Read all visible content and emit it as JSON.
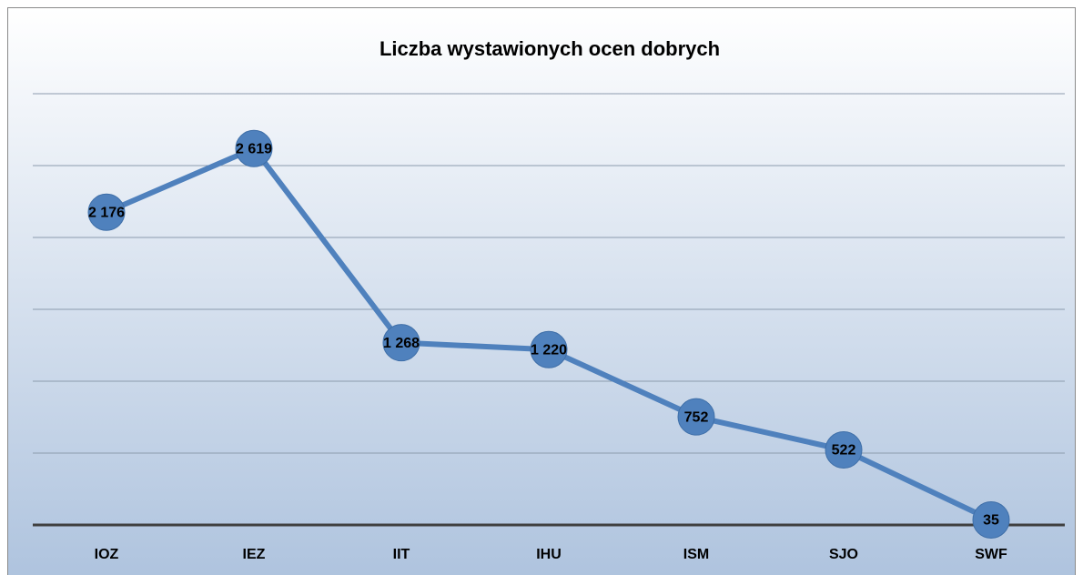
{
  "chart_data": {
    "type": "line",
    "title": "Liczba wystawionych ocen dobrych",
    "categories": [
      "IOZ",
      "IEZ",
      "IIT",
      "IHU",
      "ISM",
      "SJO",
      "SWF"
    ],
    "series": [
      {
        "name": "Liczba wystawionych ocen dobrych",
        "color": "#4f81bd",
        "values": [
          2176,
          2619,
          1268,
          1220,
          752,
          522,
          35
        ],
        "value_labels": [
          "2 176",
          "2 619",
          "1 268",
          "1 220",
          "752",
          "522",
          "35"
        ]
      }
    ],
    "ylim": [
      0,
      3000
    ],
    "yticks": [
      0,
      500,
      1000,
      1500,
      2000,
      2500,
      3000
    ],
    "grid": true
  }
}
